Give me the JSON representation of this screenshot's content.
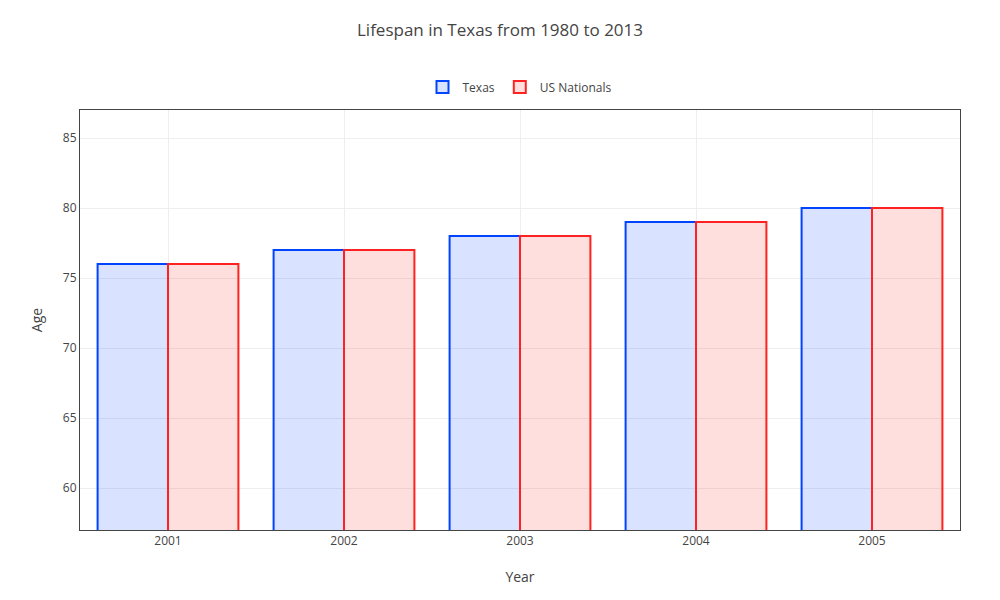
{
  "chart_data": {
    "type": "bar",
    "title": "Lifespan in Texas from 1980 to 2013",
    "x_label": "Year",
    "y_label": "Age",
    "categories": [
      "2001",
      "2002",
      "2003",
      "2004",
      "2005"
    ],
    "series": [
      {
        "name": "Texas",
        "color": "#0044ff",
        "values": [
          76,
          77,
          78,
          79,
          80
        ]
      },
      {
        "name": "US Nationals",
        "color": "#ff2222",
        "values": [
          76,
          77,
          78,
          79,
          80
        ]
      }
    ],
    "ylim": [
      57,
      87
    ],
    "yticks": [
      60,
      65,
      70,
      75,
      80,
      85
    ],
    "grid": true,
    "legend": "top"
  }
}
